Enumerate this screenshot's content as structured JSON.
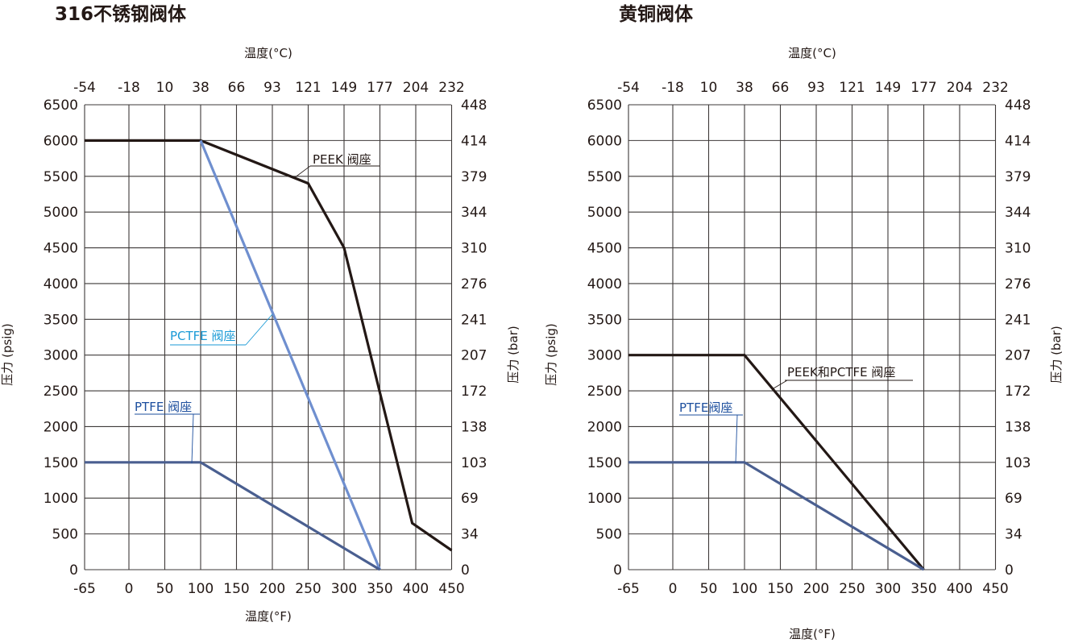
{
  "chart_data": [
    {
      "type": "line",
      "title": "316不锈钢阀体",
      "xlabel": "温度(°F)",
      "x2label": "温度(°C)",
      "ylabel": "压力 (psig)",
      "y2label": "压力 (bar)",
      "xticks": [
        -65,
        0,
        50,
        100,
        150,
        200,
        250,
        300,
        350,
        400,
        450
      ],
      "x2ticks": [
        "-54",
        "-18",
        "10",
        "38",
        "66",
        "93",
        "121",
        "149",
        "177",
        "204",
        "232"
      ],
      "yticks": [
        0,
        500,
        1000,
        1500,
        2000,
        2500,
        3000,
        3500,
        4000,
        4500,
        5000,
        5500,
        6000,
        6500
      ],
      "y2ticks": [
        "0",
        "34",
        "69",
        "103",
        "138",
        "172",
        "207",
        "241",
        "276",
        "310",
        "344",
        "379",
        "414",
        "448"
      ],
      "xlim": [
        -65,
        450
      ],
      "ylim": [
        0,
        6500
      ],
      "grid": true,
      "series": [
        {
          "name": "PEEK 阀座",
          "color": "#231815",
          "label_color": "#231815",
          "points": [
            [
              -65,
              6000
            ],
            [
              100,
              6000
            ],
            [
              250,
              5400
            ],
            [
              300,
              4500
            ],
            [
              395,
              650
            ],
            [
              450,
              270
            ]
          ]
        },
        {
          "name": "PCTFE 阀座",
          "color": "#6f8fcf",
          "label_color": "#1a9ad6",
          "points": [
            [
              100,
              6000
            ],
            [
              350,
              0
            ]
          ]
        },
        {
          "name": "PTFE 阀座",
          "color": "#4a5f90",
          "label_color": "#1d4f9e",
          "points": [
            [
              -65,
              1500
            ],
            [
              100,
              1500
            ],
            [
              350,
              0
            ]
          ]
        }
      ]
    },
    {
      "type": "line",
      "title": "黄铜阀体",
      "xlabel": "温度(°F)",
      "x2label": "温度(°C)",
      "ylabel": "压力 (psig)",
      "y2label": "压力 (bar)",
      "xticks": [
        -65,
        0,
        50,
        100,
        150,
        200,
        250,
        300,
        350,
        400,
        450
      ],
      "x2ticks": [
        "-54",
        "-18",
        "10",
        "38",
        "66",
        "93",
        "121",
        "149",
        "177",
        "204",
        "232"
      ],
      "yticks": [
        0,
        500,
        1000,
        1500,
        2000,
        2500,
        3000,
        3500,
        4000,
        4500,
        5000,
        5500,
        6000,
        6500
      ],
      "y2ticks": [
        "0",
        "34",
        "69",
        "103",
        "138",
        "172",
        "207",
        "241",
        "276",
        "310",
        "344",
        "379",
        "414",
        "448"
      ],
      "xlim": [
        -65,
        450
      ],
      "ylim": [
        0,
        6500
      ],
      "grid": true,
      "series": [
        {
          "name": "PEEK和PCTFE 阀座",
          "color": "#231815",
          "label_color": "#231815",
          "points": [
            [
              -65,
              3000
            ],
            [
              100,
              3000
            ],
            [
              350,
              0
            ]
          ]
        },
        {
          "name": "PTFE阀座",
          "color": "#4a5f90",
          "label_color": "#1d4f9e",
          "points": [
            [
              -65,
              1500
            ],
            [
              100,
              1500
            ],
            [
              350,
              0
            ]
          ]
        }
      ]
    }
  ]
}
